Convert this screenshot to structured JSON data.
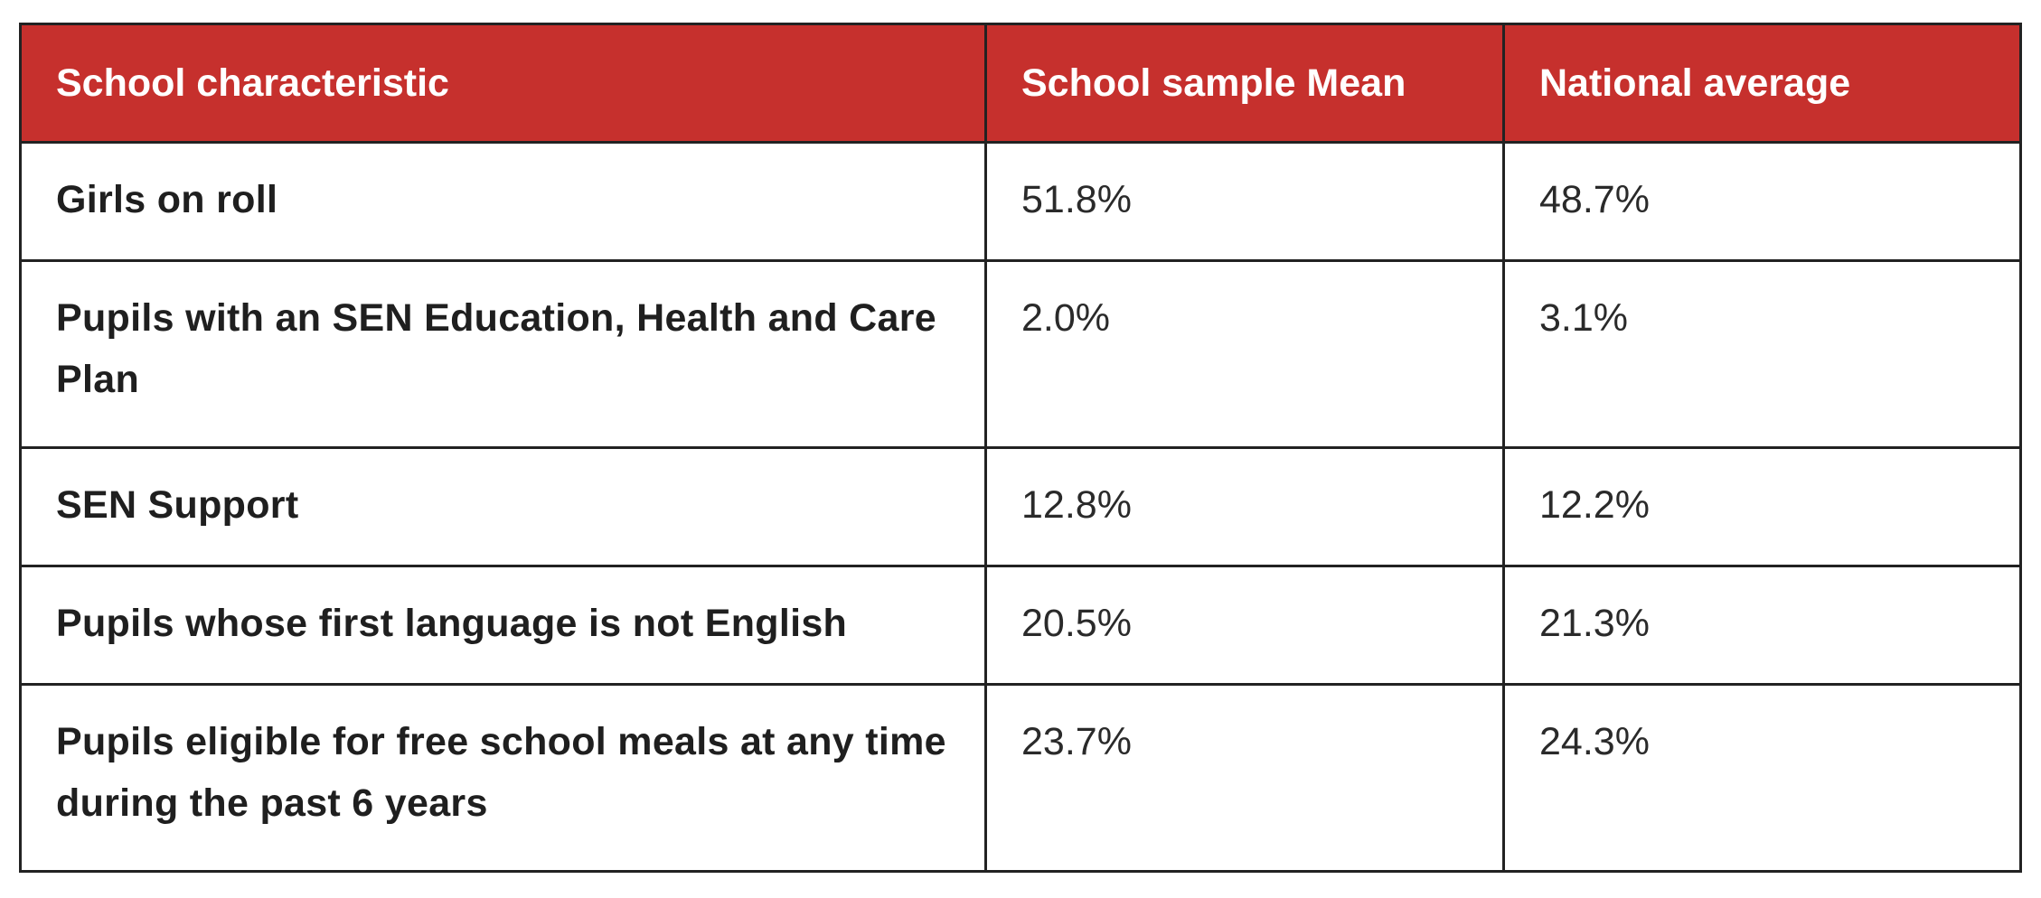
{
  "table": {
    "headers": [
      "School characteristic",
      "School sample Mean",
      "National average"
    ],
    "rows": [
      {
        "characteristic": "Girls on roll",
        "sample_mean": "51.8%",
        "national_average": "48.7%"
      },
      {
        "characteristic": "Pupils with an SEN Education, Health and Care Plan",
        "sample_mean": "2.0%",
        "national_average": "3.1%"
      },
      {
        "characteristic": "SEN Support",
        "sample_mean": "12.8%",
        "national_average": "12.2%"
      },
      {
        "characteristic": "Pupils whose first language is not English",
        "sample_mean": "20.5%",
        "national_average": "21.3%"
      },
      {
        "characteristic": "Pupils eligible for free school meals at any time during the past 6 years",
        "sample_mean": "23.7%",
        "national_average": "24.3%"
      }
    ],
    "colors": {
      "header_background": "#c6302d",
      "header_text": "#ffffff",
      "border": "#222222",
      "body_text": "#1f1f1f"
    }
  }
}
